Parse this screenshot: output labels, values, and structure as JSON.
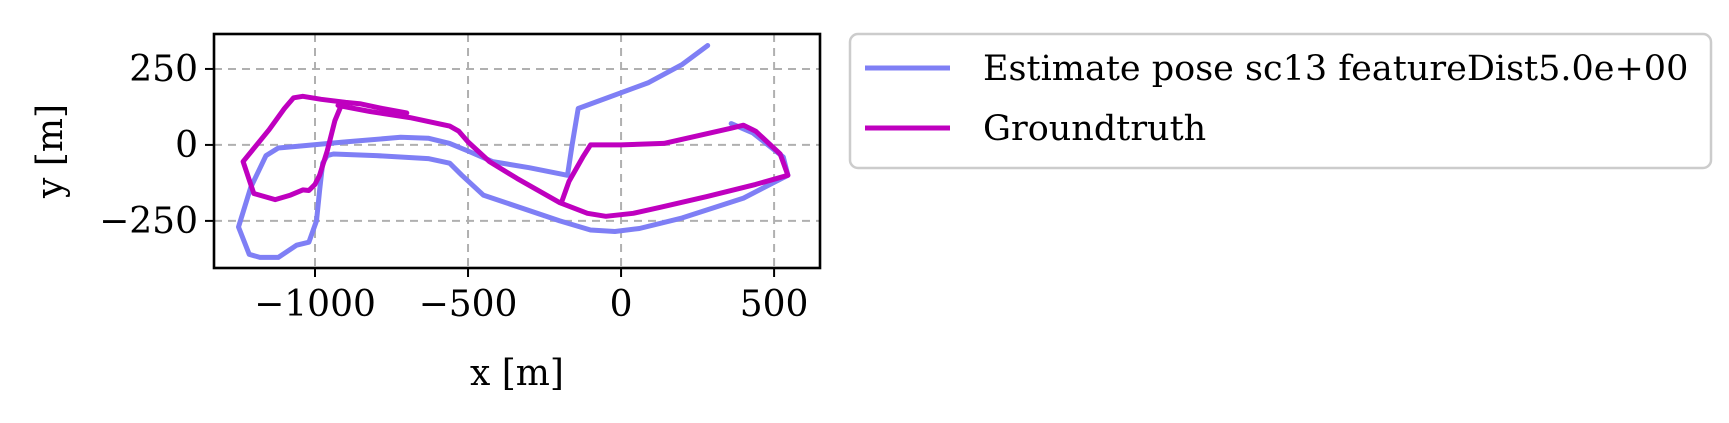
{
  "chart_data": {
    "type": "line",
    "title": "",
    "xlabel": "x [m]",
    "ylabel": "y [m]",
    "xlim": [
      -1330,
      650
    ],
    "ylim": [
      -405,
      365
    ],
    "xticks": [
      -1000,
      -500,
      0,
      500
    ],
    "yticks": [
      -250,
      0,
      250
    ],
    "xtick_labels": [
      "−1000",
      "−500",
      "0",
      "500"
    ],
    "ytick_labels": [
      "−250",
      "0",
      "250"
    ],
    "grid": true,
    "legend_position": "outside-right-top",
    "series": [
      {
        "name": "Estimate pose sc13 featureDist5.0e+00",
        "color": "#7f7ff5",
        "points": [
          [
            283,
            327
          ],
          [
            200,
            265
          ],
          [
            90,
            205
          ],
          [
            -140,
            120
          ],
          [
            -160,
            0
          ],
          [
            -175,
            -100
          ],
          [
            -300,
            -75
          ],
          [
            -420,
            -55
          ],
          [
            -500,
            -20
          ],
          [
            -560,
            5
          ],
          [
            -630,
            22
          ],
          [
            -720,
            25
          ],
          [
            -900,
            10
          ],
          [
            -1060,
            -5
          ],
          [
            -1120,
            -10
          ],
          [
            -1160,
            -35
          ],
          [
            -1210,
            -140
          ],
          [
            -1250,
            -270
          ],
          [
            -1215,
            -360
          ],
          [
            -1180,
            -370
          ],
          [
            -1120,
            -370
          ],
          [
            -1060,
            -330
          ],
          [
            -1020,
            -320
          ],
          [
            -995,
            -250
          ],
          [
            -985,
            -150
          ],
          [
            -975,
            -60
          ],
          [
            -960,
            -35
          ],
          [
            -940,
            -30
          ],
          [
            -800,
            -35
          ],
          [
            -630,
            -45
          ],
          [
            -560,
            -60
          ],
          [
            -520,
            -100
          ],
          [
            -450,
            -165
          ],
          [
            -200,
            -250
          ],
          [
            -100,
            -280
          ],
          [
            -20,
            -285
          ],
          [
            60,
            -275
          ],
          [
            200,
            -240
          ],
          [
            400,
            -175
          ],
          [
            545,
            -100
          ],
          [
            530,
            -40
          ],
          [
            430,
            40
          ],
          [
            360,
            70
          ]
        ]
      },
      {
        "name": "Groundtruth",
        "color": "#bf00bf",
        "points": [
          [
            -925,
            130
          ],
          [
            -820,
            110
          ],
          [
            -690,
            90
          ],
          [
            -560,
            62
          ],
          [
            -530,
            45
          ],
          [
            -500,
            10
          ],
          [
            -430,
            -55
          ],
          [
            -340,
            -110
          ],
          [
            -200,
            -190
          ],
          [
            -110,
            -225
          ],
          [
            -50,
            -235
          ],
          [
            40,
            -225
          ],
          [
            130,
            -205
          ],
          [
            280,
            -170
          ],
          [
            440,
            -130
          ],
          [
            545,
            -100
          ],
          [
            520,
            -30
          ],
          [
            440,
            45
          ],
          [
            400,
            65
          ],
          [
            360,
            55
          ],
          [
            250,
            30
          ],
          [
            140,
            5
          ],
          [
            0,
            0
          ],
          [
            -100,
            0
          ],
          [
            -125,
            -40
          ],
          [
            -170,
            -120
          ],
          [
            -195,
            -190
          ]
        ]
      },
      {
        "name": "Groundtruth",
        "color": "#bf00bf",
        "points": [
          [
            -910,
            140
          ],
          [
            -935,
            80
          ],
          [
            -960,
            -20
          ],
          [
            -985,
            -100
          ],
          [
            -1000,
            -130
          ],
          [
            -1020,
            -150
          ],
          [
            -1040,
            -148
          ],
          [
            -1080,
            -165
          ],
          [
            -1130,
            -180
          ],
          [
            -1200,
            -160
          ],
          [
            -1235,
            -55
          ],
          [
            -1150,
            50
          ],
          [
            -1100,
            120
          ],
          [
            -1070,
            155
          ],
          [
            -1040,
            160
          ],
          [
            -980,
            150
          ],
          [
            -900,
            140
          ],
          [
            -850,
            135
          ],
          [
            -780,
            120
          ],
          [
            -700,
            105
          ]
        ]
      }
    ]
  }
}
